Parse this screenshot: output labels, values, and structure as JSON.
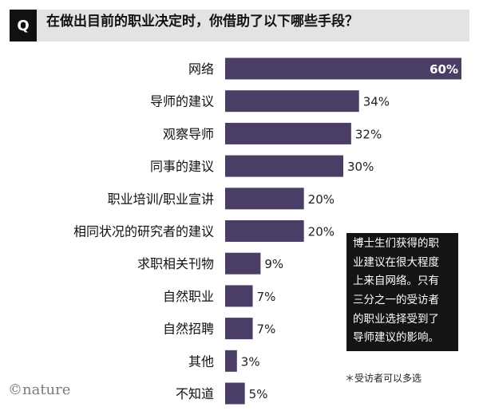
{
  "header": {
    "badge": "Q",
    "title": "在做出目前的职业决定时，你借助了以下哪些手段？"
  },
  "chart_data": {
    "type": "bar",
    "orientation": "horizontal",
    "categories": [
      "网络",
      "导师的建议",
      "观察导师",
      "同事的建议",
      "职业培训/职业宣讲",
      "相同状况的研究者的建议",
      "求职相关刊物",
      "自然职业",
      "自然招聘",
      "其他",
      "不知道"
    ],
    "values": [
      60,
      34,
      32,
      30,
      20,
      20,
      9,
      7,
      7,
      3,
      5
    ],
    "value_labels": [
      "60%",
      "34%",
      "32%",
      "30%",
      "20%",
      "20%",
      "9%",
      "7%",
      "7%",
      "3%",
      "5%"
    ],
    "unit": "%",
    "xlim": [
      0,
      60
    ],
    "grid": false,
    "bar_color": "#4b3e66",
    "top_label_color": "#ffffff",
    "label_color": "#222222"
  },
  "callout": {
    "text": "博士生们获得的职\n业建议在很大程度\n上来自网络。只有\n三分之一的受访者\n的职业选择受到了\n导师建议的影响。"
  },
  "footnote": "＊受访者可以多选",
  "logo": "©nature",
  "colors": {
    "header_bg": "#e3e3e3",
    "badge_bg": "#111111",
    "callout_bg": "#141414"
  }
}
